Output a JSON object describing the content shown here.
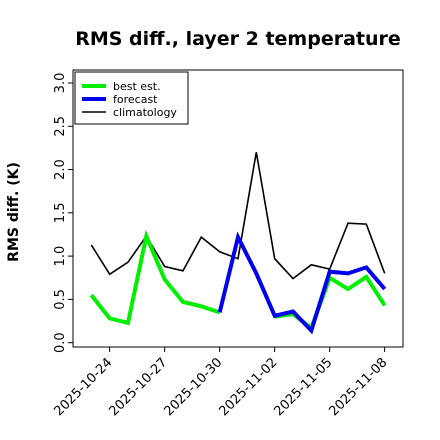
{
  "chart_data": {
    "type": "line",
    "title": "RMS diff., layer 2 temperature",
    "xlabel": "",
    "ylabel": "RMS diff. (K)",
    "ylim": [
      -0.05,
      3.15
    ],
    "y_ticks": [
      "0.0",
      "0.5",
      "1.0",
      "1.5",
      "2.0",
      "2.5",
      "3.0"
    ],
    "x_ticks": [
      "2025-10-24",
      "2025-10-27",
      "2025-10-30",
      "2025-11-02",
      "2025-11-05",
      "2025-11-08"
    ],
    "highlighted_x_tick": "2025-10-30",
    "highlight_color": "#008000",
    "legend_position": "upper-left",
    "series": [
      {
        "name": "best est.",
        "color": "#00ee00",
        "width": 4,
        "points": [
          [
            "2025-10-23",
            0.55
          ],
          [
            "2025-10-24",
            0.28
          ],
          [
            "2025-10-25",
            0.23
          ],
          [
            "2025-10-26",
            1.23
          ],
          [
            "2025-10-27",
            0.73
          ],
          [
            "2025-10-28",
            0.47
          ],
          [
            "2025-10-29",
            0.42
          ],
          [
            "2025-10-30",
            0.35
          ]
        ]
      },
      {
        "name": "forecast",
        "color": "#0000ee",
        "width": 4,
        "points": [
          [
            "2025-10-30",
            0.35
          ],
          [
            "2025-10-31",
            1.22
          ],
          [
            "2025-11-01",
            0.8
          ],
          [
            "2025-11-02",
            0.31
          ],
          [
            "2025-11-03",
            0.36
          ],
          [
            "2025-11-04",
            0.14
          ],
          [
            "2025-11-05",
            0.82
          ],
          [
            "2025-11-06",
            0.8
          ],
          [
            "2025-11-07",
            0.87
          ],
          [
            "2025-11-08",
            0.62
          ]
        ]
      },
      {
        "name": "climatology",
        "color": "#000000",
        "width": 1.6,
        "points": [
          [
            "2025-10-23",
            1.13
          ],
          [
            "2025-10-24",
            0.79
          ],
          [
            "2025-10-25",
            0.93
          ],
          [
            "2025-10-26",
            1.23
          ],
          [
            "2025-10-27",
            0.88
          ],
          [
            "2025-10-28",
            0.83
          ],
          [
            "2025-10-29",
            1.22
          ],
          [
            "2025-10-30",
            1.05
          ],
          [
            "2025-10-31",
            0.97
          ],
          [
            "2025-11-01",
            2.2
          ],
          [
            "2025-11-02",
            0.97
          ],
          [
            "2025-11-03",
            0.74
          ],
          [
            "2025-11-04",
            0.9
          ],
          [
            "2025-11-05",
            0.85
          ],
          [
            "2025-11-06",
            1.38
          ],
          [
            "2025-11-07",
            1.37
          ],
          [
            "2025-11-08",
            0.8
          ]
        ]
      }
    ],
    "overlay_series": [
      {
        "color": "#00ee00",
        "width": 4,
        "points": [
          [
            "2025-11-02",
            0.3
          ],
          [
            "2025-11-03",
            0.33
          ],
          [
            "2025-11-04",
            0.17
          ],
          [
            "2025-11-05",
            0.75
          ],
          [
            "2025-11-06",
            0.62
          ],
          [
            "2025-11-07",
            0.76
          ],
          [
            "2025-11-08",
            0.43
          ]
        ]
      }
    ]
  }
}
